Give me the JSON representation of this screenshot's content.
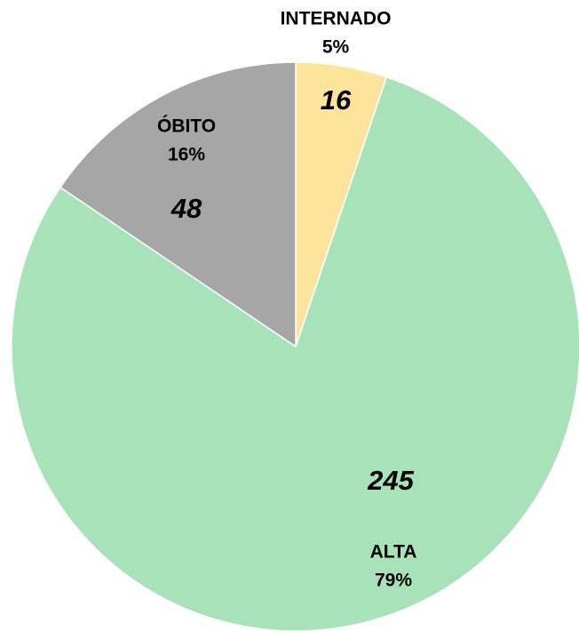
{
  "chart_data": {
    "type": "pie",
    "categories": [
      "INTERNADO",
      "ALTA",
      "ÓBITO"
    ],
    "values": [
      16,
      245,
      48
    ],
    "percentages": [
      5,
      79,
      16
    ],
    "percentage_labels": [
      "5%",
      "79%",
      "16%"
    ],
    "colors": [
      "#fde49c",
      "#a8e2b8",
      "#a6a6a6"
    ]
  }
}
